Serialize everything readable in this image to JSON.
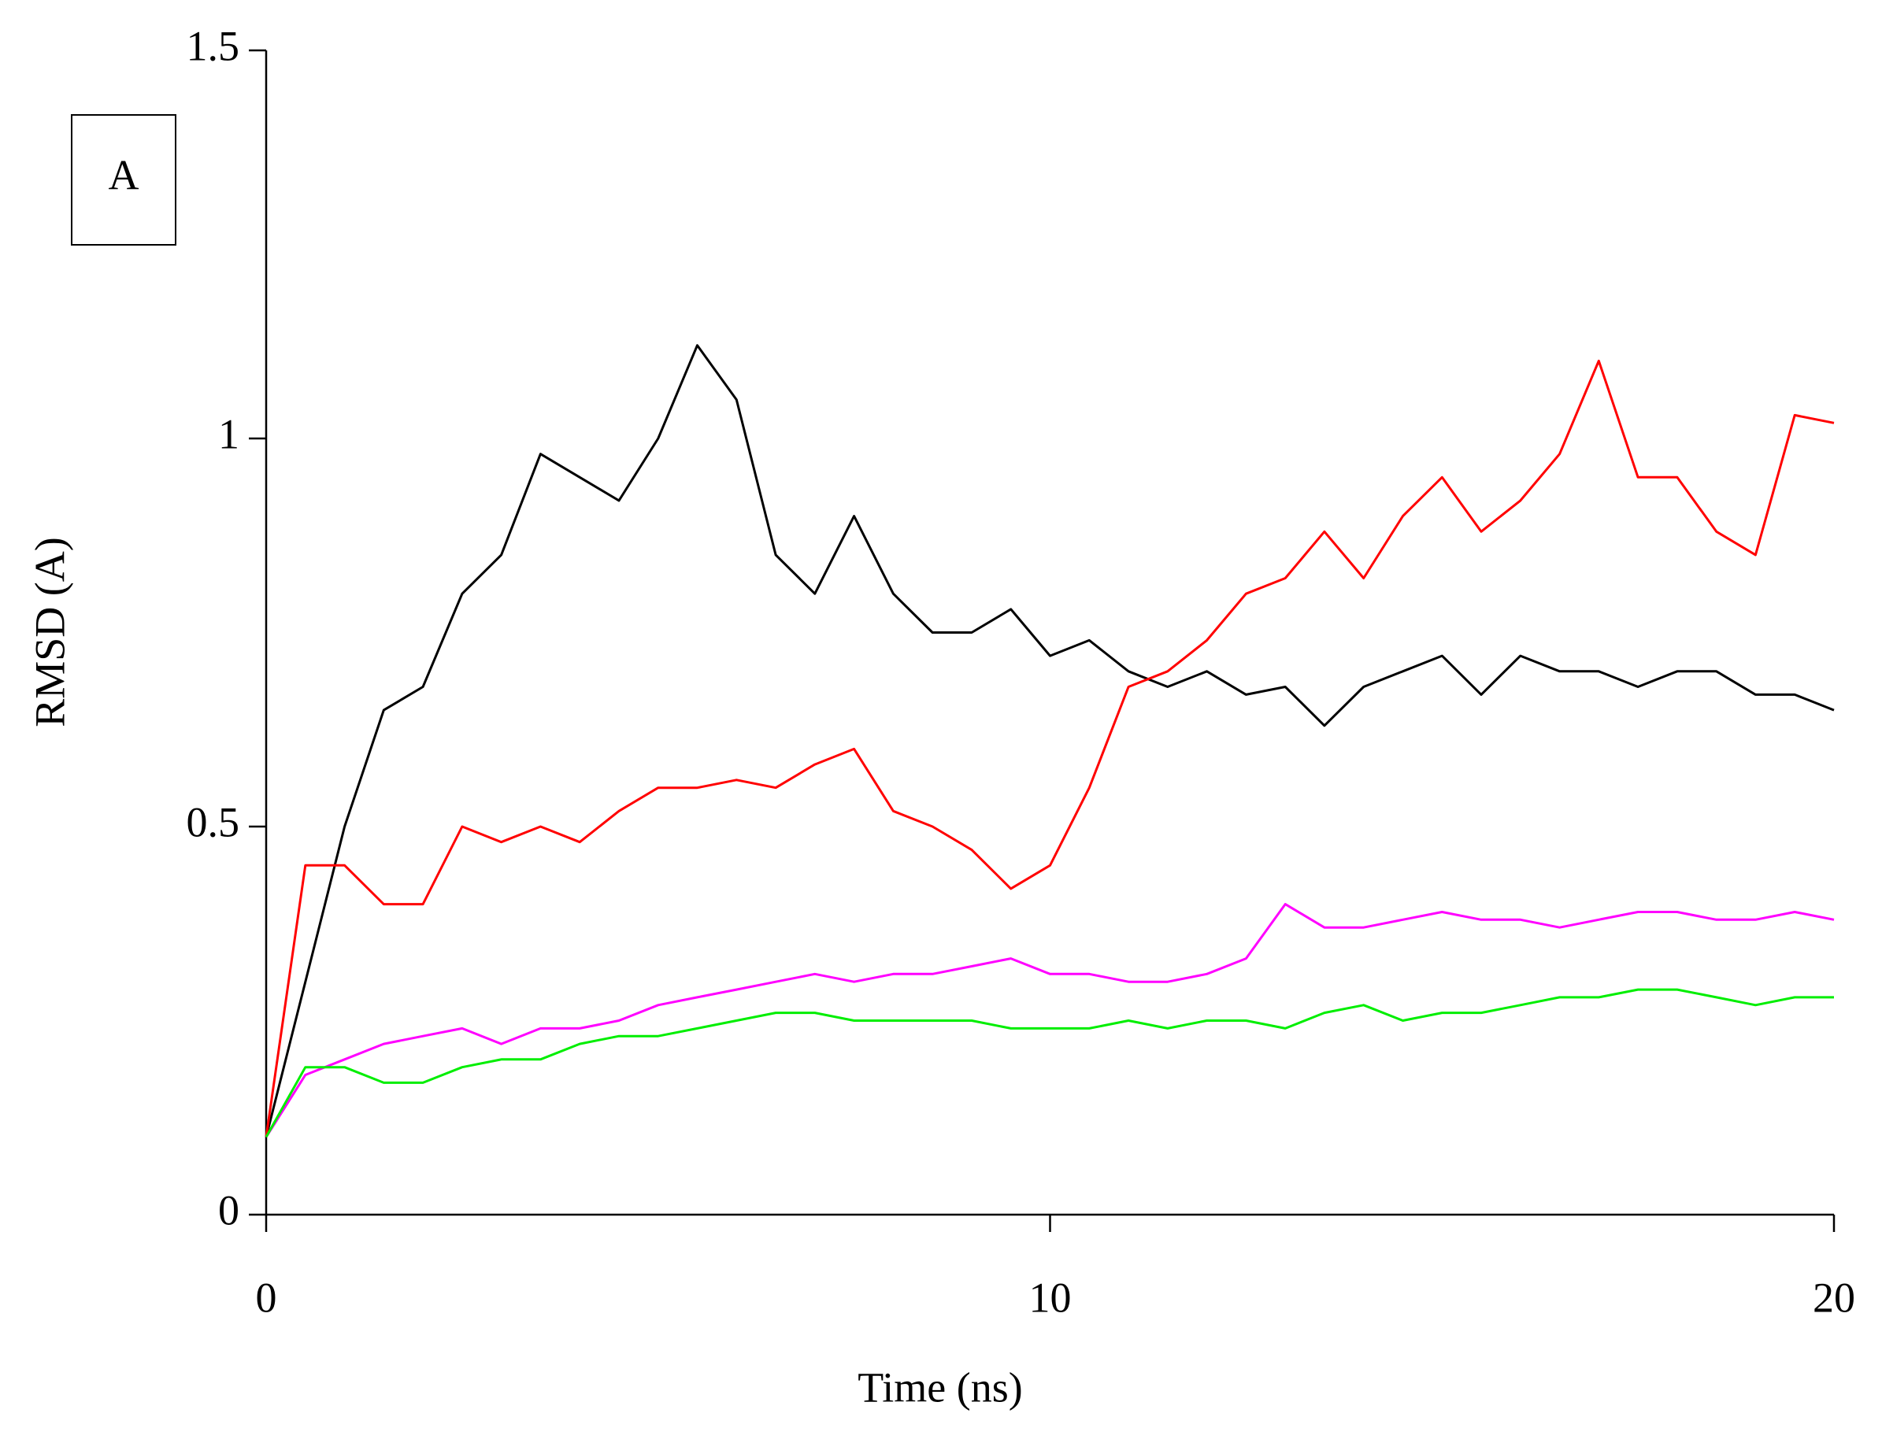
{
  "chart_data": {
    "type": "line",
    "annotation": "A",
    "xlabel": "Time (ns)",
    "ylabel": "RMSD (A)",
    "xlim": [
      0,
      20
    ],
    "xticks": [
      0,
      10,
      20
    ],
    "ylim": [
      0,
      1.5
    ],
    "yticks": [
      0,
      0.5,
      1,
      1.5
    ],
    "x": [
      0,
      0.5,
      1,
      1.5,
      2,
      2.5,
      3,
      3.5,
      4,
      4.5,
      5,
      5.5,
      6,
      6.5,
      7,
      7.5,
      8,
      8.5,
      9,
      9.5,
      10,
      10.5,
      11,
      11.5,
      12,
      12.5,
      13,
      13.5,
      14,
      14.5,
      15,
      15.5,
      16,
      16.5,
      17,
      17.5,
      18,
      18.5,
      19,
      19.5,
      20
    ],
    "series": [
      {
        "color": "#000000",
        "values": [
          0.1,
          0.3,
          0.5,
          0.65,
          0.68,
          0.8,
          0.85,
          0.98,
          0.95,
          0.92,
          1.0,
          1.12,
          1.05,
          0.85,
          0.8,
          0.9,
          0.8,
          0.75,
          0.75,
          0.78,
          0.72,
          0.74,
          0.7,
          0.68,
          0.7,
          0.67,
          0.68,
          0.63,
          0.68,
          0.7,
          0.72,
          0.67,
          0.72,
          0.7,
          0.7,
          0.68,
          0.7,
          0.7,
          0.67,
          0.67,
          0.65
        ]
      },
      {
        "color": "#ff0000",
        "values": [
          0.1,
          0.45,
          0.45,
          0.4,
          0.4,
          0.5,
          0.48,
          0.5,
          0.48,
          0.52,
          0.55,
          0.55,
          0.56,
          0.55,
          0.58,
          0.6,
          0.52,
          0.5,
          0.47,
          0.42,
          0.45,
          0.55,
          0.68,
          0.7,
          0.74,
          0.8,
          0.82,
          0.88,
          0.82,
          0.9,
          0.95,
          0.88,
          0.92,
          0.98,
          1.1,
          0.95,
          0.95,
          0.88,
          0.85,
          1.03,
          1.02
        ]
      },
      {
        "color": "#ff00ff",
        "values": [
          0.1,
          0.18,
          0.2,
          0.22,
          0.23,
          0.24,
          0.22,
          0.24,
          0.24,
          0.25,
          0.27,
          0.28,
          0.29,
          0.3,
          0.31,
          0.3,
          0.31,
          0.31,
          0.32,
          0.33,
          0.31,
          0.31,
          0.3,
          0.3,
          0.31,
          0.33,
          0.4,
          0.37,
          0.37,
          0.38,
          0.39,
          0.38,
          0.38,
          0.37,
          0.38,
          0.39,
          0.39,
          0.38,
          0.38,
          0.39,
          0.38
        ]
      },
      {
        "color": "#00ee00",
        "values": [
          0.1,
          0.19,
          0.19,
          0.17,
          0.17,
          0.19,
          0.2,
          0.2,
          0.22,
          0.23,
          0.23,
          0.24,
          0.25,
          0.26,
          0.26,
          0.25,
          0.25,
          0.25,
          0.25,
          0.24,
          0.24,
          0.24,
          0.25,
          0.24,
          0.25,
          0.25,
          0.24,
          0.26,
          0.27,
          0.25,
          0.26,
          0.26,
          0.27,
          0.28,
          0.28,
          0.29,
          0.29,
          0.28,
          0.27,
          0.28,
          0.28
        ]
      }
    ]
  }
}
